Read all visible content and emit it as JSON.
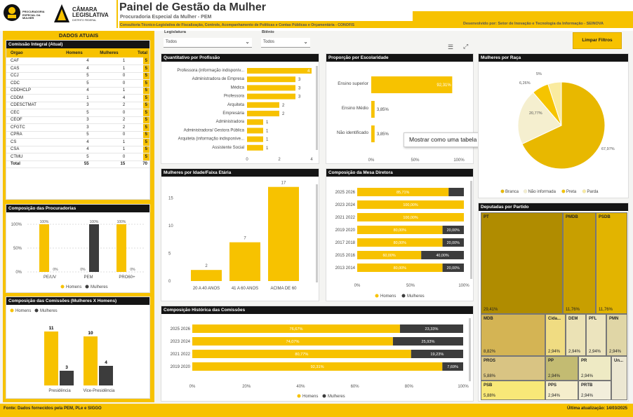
{
  "header": {
    "title": "Painel de Gestão da Mulher",
    "subtitle": "Procuradoria Especial da Mulher - PEM",
    "consultoria": "Consultoria Técnico-Legislativa de Fiscalização, Controle, Acompanhamento de Políticas e Contas Públicas e Orçamentária - CONOFIS",
    "developed_by": "Desenvolvido por: Setor de Inovação e Tecnologia da Informação - SEINOVA",
    "logo1_text": "PROCURADORIA ESPECIAL DA MULHER",
    "logo2_line1": "CÂMARA",
    "logo2_line2": "LEGISLATIVA",
    "logo2_line3": "DISTRITO FEDERAL"
  },
  "filters": {
    "legislatura_label": "Legislatura",
    "legislatura_value": "Todos",
    "bienio_label": "Biênio",
    "bienio_value": "Todos",
    "clear_button": "Limpar Filtros"
  },
  "dados_atuais": {
    "title": "DADOS ATUAIS",
    "table_title": "Comissão Integral (Atual)",
    "columns": [
      "Orgao",
      "Homens",
      "Mulheres",
      "Total"
    ],
    "rows": [
      [
        "CAF",
        "4",
        "1",
        "5"
      ],
      [
        "CAS",
        "4",
        "1",
        "5"
      ],
      [
        "CCJ",
        "5",
        "0",
        "5"
      ],
      [
        "CDC",
        "5",
        "0",
        "5"
      ],
      [
        "CDDHCLP",
        "4",
        "1",
        "5"
      ],
      [
        "CDDM",
        "1",
        "4",
        "5"
      ],
      [
        "CDESCTMAT",
        "3",
        "2",
        "5"
      ],
      [
        "CEC",
        "5",
        "0",
        "5"
      ],
      [
        "CEOF",
        "3",
        "2",
        "5"
      ],
      [
        "CFGTC",
        "3",
        "2",
        "5"
      ],
      [
        "CPRA",
        "5",
        "0",
        "5"
      ],
      [
        "CS",
        "4",
        "1",
        "5"
      ],
      [
        "CSA",
        "4",
        "1",
        "5"
      ],
      [
        "CTMU",
        "5",
        "0",
        "5"
      ]
    ],
    "total": [
      "Total",
      "55",
      "15",
      "70"
    ]
  },
  "procuradorias": {
    "title": "Composição das Procuradorias",
    "yticks": [
      "100%",
      "50%",
      "0%"
    ],
    "categories": [
      "PE/UV",
      "PEM",
      "PRO60+"
    ],
    "homens": [
      100,
      0,
      100
    ],
    "mulheres": [
      0,
      100,
      0
    ],
    "homens_labels": [
      "100%",
      "0%",
      "100%"
    ],
    "mulheres_labels": [
      "0%",
      "100%",
      "0%"
    ],
    "legend": [
      "Homens",
      "Mulheres"
    ]
  },
  "comissoes_mh": {
    "title": "Composição das Comissões (Mulheres X Homens)",
    "legend": [
      "Homens",
      "Mulheres"
    ],
    "categories": [
      "Presidência",
      "Vice-Presidência"
    ],
    "homens": [
      11,
      10
    ],
    "mulheres": [
      3,
      4
    ]
  },
  "profissao": {
    "title": "Quantitativo por Profissão",
    "rows": [
      [
        "Professora (informação indisponív...",
        4
      ],
      [
        "Administradora de Empresa",
        3
      ],
      [
        "Médica",
        3
      ],
      [
        "Professora",
        3
      ],
      [
        "Arquiteta",
        2
      ],
      [
        "Empresária",
        2
      ],
      [
        "Administradora",
        1
      ],
      [
        "Administradora/ Gestora Pública",
        1
      ],
      [
        "Arquiteta (informação indisponíve...",
        1
      ],
      [
        "Assistente Social",
        1
      ]
    ],
    "xticks": [
      "0",
      "2",
      "4"
    ]
  },
  "escolaridade": {
    "title": "Proporção por Escolaridade",
    "rows": [
      [
        "Ensino superior",
        92.31,
        "92,31%"
      ],
      [
        "Ensino Médio",
        3.85,
        "3,85%"
      ],
      [
        "Não identificado",
        3.85,
        "3,85%"
      ]
    ],
    "xticks": [
      "0%",
      "50%",
      "100%"
    ],
    "tooltip": "Mostrar como uma tabela"
  },
  "raca": {
    "title": "Mulheres por Raça",
    "slices": [
      [
        "Branca",
        67.97,
        "67,97%",
        "#e8b800"
      ],
      [
        "Não informada",
        20.77,
        "20,77%",
        "#f5efcf"
      ],
      [
        "Preta",
        6.26,
        "6,26%",
        "#f5c400"
      ],
      [
        "Parda",
        5,
        "5%",
        "#faeba0"
      ]
    ],
    "legend": [
      "Branca",
      "Não informada",
      "Preta",
      "Parda"
    ]
  },
  "idade": {
    "title": "Mulheres por Idade/Faixa Etária",
    "categories": [
      "20 A 40 ANOS",
      "41 A 60 ANOS",
      "ACIMA DE 60"
    ],
    "values": [
      2,
      7,
      17
    ],
    "labels": [
      "2",
      "7",
      "17"
    ],
    "yticks": [
      "15",
      "10",
      "5",
      "0"
    ]
  },
  "mesa": {
    "title": "Composição da Mesa Diretora",
    "rows": [
      [
        "2025 2026",
        85.71,
        14.29,
        "85,71%",
        ""
      ],
      [
        "2023 2024",
        100,
        0,
        "100,00%",
        ""
      ],
      [
        "2021 2022",
        100,
        0,
        "100,00%",
        ""
      ],
      [
        "2019 2020",
        80,
        20,
        "80,00%",
        "20,00%"
      ],
      [
        "2017 2018",
        80,
        20,
        "80,00%",
        "20,00%"
      ],
      [
        "2015 2016",
        60,
        40,
        "60,00%",
        "40,00%"
      ],
      [
        "2013 2014",
        80,
        20,
        "80,00%",
        "20,00%"
      ]
    ],
    "xticks": [
      "0%",
      "50%",
      "100%"
    ],
    "legend": [
      "Homens",
      "Mulheres"
    ]
  },
  "historica": {
    "title": "Composição Histórica das Comissões",
    "rows": [
      [
        "2025 2026",
        76.67,
        23.33,
        "76,67%",
        "23,33%"
      ],
      [
        "2023 2024",
        74.07,
        25.93,
        "74,07%",
        "25,93%"
      ],
      [
        "2021 2022",
        80.77,
        19.23,
        "80,77%",
        "19,23%"
      ],
      [
        "2019 2020",
        92.31,
        7.69,
        "92,31%",
        "7,69%"
      ]
    ],
    "xticks": [
      "0%",
      "20%",
      "40%",
      "60%",
      "80%",
      "100%"
    ],
    "legend": [
      "Homens",
      "Mulheres"
    ]
  },
  "partido": {
    "title": "Deputadas por Partido",
    "cells": [
      [
        "PT",
        "29,41%"
      ],
      [
        "PMDB",
        "11,76%"
      ],
      [
        "PSDB",
        "11,76%"
      ],
      [
        "MDB",
        "8,82%"
      ],
      [
        "Cida...",
        "2,94%"
      ],
      [
        "DEM",
        "2,94%"
      ],
      [
        "PFL",
        "2,94%"
      ],
      [
        "PMN",
        "2,94%"
      ],
      [
        "PROS",
        "5,88%"
      ],
      [
        "PP",
        "2,94%"
      ],
      [
        "PR",
        "2,94%"
      ],
      [
        "Un...",
        ""
      ],
      [
        "PSB",
        "5,88%"
      ],
      [
        "PPS",
        "2,94%"
      ],
      [
        "PRTB",
        "2,94%"
      ]
    ]
  },
  "footer": {
    "source": "Fonte: Dados fornecidos pela PEM, PLe e SIGGO",
    "updated": "Última atualização: 14/03/2025"
  },
  "colors": {
    "accent": "#f7c200",
    "dark": "#3c3c3c",
    "header_dark": "#141414"
  }
}
